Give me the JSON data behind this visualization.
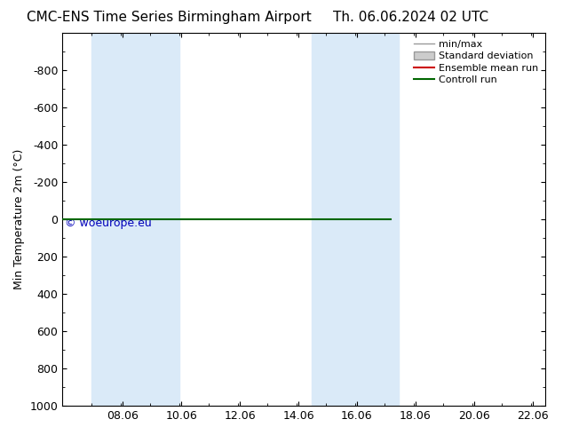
{
  "title_left": "CMC-ENS Time Series Birmingham Airport",
  "title_right": "Th. 06.06.2024 02 UTC",
  "ylabel": "Min Temperature 2m (°C)",
  "ylim_bottom": 1000,
  "ylim_top": -1000,
  "yticks": [
    -800,
    -600,
    -400,
    -200,
    0,
    200,
    400,
    600,
    800,
    1000
  ],
  "xlim_left": 6.0,
  "xlim_right": 22.5,
  "xticks": [
    8.06,
    10.06,
    12.06,
    14.06,
    16.06,
    18.06,
    20.06,
    22.06
  ],
  "xtick_labels": [
    "08.06",
    "10.06",
    "12.06",
    "14.06",
    "16.06",
    "18.06",
    "20.06",
    "22.06"
  ],
  "shaded_bands": [
    [
      7.0,
      8.5
    ],
    [
      8.5,
      10.0
    ],
    [
      14.5,
      16.0
    ],
    [
      16.0,
      17.5
    ]
  ],
  "control_run_x_end": 17.2,
  "control_run_y": 0,
  "control_run_color": "#006600",
  "ensemble_mean_color": "#cc0000",
  "minmax_color": "#999999",
  "std_dev_color": "#cccccc",
  "background_color": "#ffffff",
  "shade_color": "#daeaf8",
  "watermark": "© woeurope.eu",
  "watermark_color": "#0000bb",
  "legend_entries": [
    "min/max",
    "Standard deviation",
    "Ensemble mean run",
    "Controll run"
  ],
  "legend_colors": [
    "#999999",
    "#cccccc",
    "#cc0000",
    "#006600"
  ],
  "title_fontsize": 11,
  "axis_fontsize": 9,
  "legend_fontsize": 8
}
